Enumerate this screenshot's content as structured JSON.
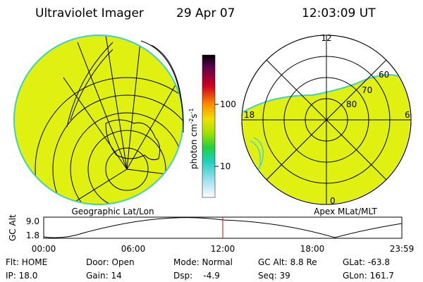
{
  "header": {
    "title": "Ultraviolet Imager",
    "date": "29 Apr 07",
    "time": "12:03:09 UT"
  },
  "left_panel": {
    "label": "Geographic Lat/Lon"
  },
  "colorbar": {
    "unit": "photon cm",
    "exp1": "-2",
    "mid": "s",
    "exp2": "-1",
    "ticks": [
      "100",
      "10"
    ]
  },
  "right_panel": {
    "label": "Apex MLat/MLT",
    "mlt_labels": [
      "12",
      "18",
      "6",
      "0"
    ],
    "lat_labels": [
      "60",
      "70",
      "80"
    ]
  },
  "altitude_plot": {
    "axis_label": "GC Alt",
    "y_labels": [
      "9.0",
      "1.8"
    ],
    "x_labels": [
      "00:00",
      "06:00",
      "12:00",
      "18:00",
      "23:59"
    ]
  },
  "status": [
    [
      "Flt: HOME",
      "Door: Open",
      "Mode: Normal",
      "GC Alt: 8.8 Re",
      "GLat: -63.8"
    ],
    [
      "IP: 18.0",
      "Gain: 14",
      "Dsp:    -4.9",
      "Seq: 39",
      "GLon: 161.7"
    ]
  ]
}
